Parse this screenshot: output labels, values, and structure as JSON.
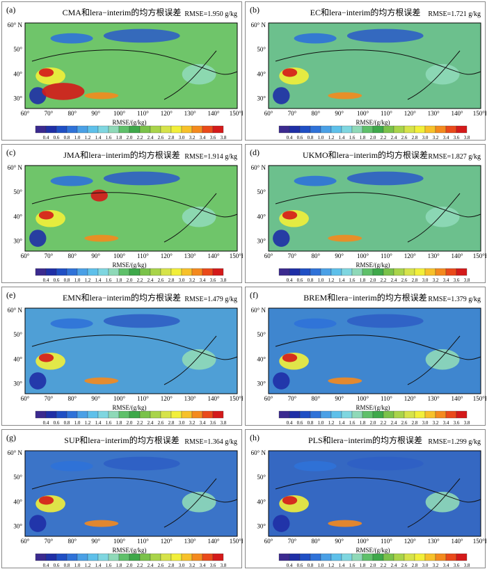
{
  "figure": {
    "colorbar_label": "RMSE/(g/kg)",
    "colorbar_ticks": [
      "0.4",
      "0.6",
      "0.8",
      "1.0",
      "1.2",
      "1.4",
      "1.6",
      "1.8",
      "2.0",
      "2.2",
      "2.4",
      "2.6",
      "2.8",
      "3.0",
      "3.2",
      "3.4",
      "3.6",
      "3.8"
    ],
    "colorbar_colors": [
      "#3b2a8f",
      "#1f2fa6",
      "#1f4fc4",
      "#2f72d8",
      "#4aa0e6",
      "#5ec0ea",
      "#7fd6e0",
      "#8fd9b8",
      "#5fc06a",
      "#3ea84a",
      "#7ac24a",
      "#a9d44a",
      "#d6e34a",
      "#f2ef3a",
      "#f7c12a",
      "#f48a1e",
      "#ea4a1a",
      "#d41a1a"
    ],
    "lon_labels": [
      "60°",
      "70°",
      "80°",
      "90°",
      "100°",
      "110°",
      "120°",
      "130°",
      "140°",
      "150°E"
    ],
    "lat_labels": [
      "60° N",
      "50°",
      "40°",
      "30°"
    ]
  },
  "panels": [
    {
      "letter": "(a)",
      "title": "CMA和lera−interim的均方根误差",
      "rmse": "RMSE=1.950 g/kg",
      "tone": "#6fc56a",
      "hot": "a"
    },
    {
      "letter": "(b)",
      "title": "EC和lera−interim的均方根误差",
      "rmse": "RMSE=1.721 g/kg",
      "tone": "#6cc08d",
      "hot": "b"
    },
    {
      "letter": "(c)",
      "title": "JMA和lera−interim的均方根误差",
      "rmse": "RMSE=1.914 g/kg",
      "tone": "#6fc56a",
      "hot": "c"
    },
    {
      "letter": "(d)",
      "title": "UKMO和lera−interim的均方根误差",
      "rmse": "RMSE=1.827 g/kg",
      "tone": "#6cc08d",
      "hot": "d"
    },
    {
      "letter": "(e)",
      "title": "EMN和lera−interim的均方根误差",
      "rmse": "RMSE=1.479 g/kg",
      "tone": "#4f9fd6",
      "hot": "e"
    },
    {
      "letter": "(f)",
      "title": "BREM和lera−interim的均方根误差",
      "rmse": "RMSE=1.379 g/kg",
      "tone": "#3f86cf",
      "hot": "f"
    },
    {
      "letter": "(g)",
      "title": "SUP和lera−interim的均方根误差",
      "rmse": "RMSE=1.364 g/kg",
      "tone": "#3b74c8",
      "hot": "g"
    },
    {
      "letter": "(h)",
      "title": "PLS和lera−interim的均方根误差",
      "rmse": "RMSE=1.299 g/kg",
      "tone": "#3568c2",
      "hot": "h"
    }
  ]
}
